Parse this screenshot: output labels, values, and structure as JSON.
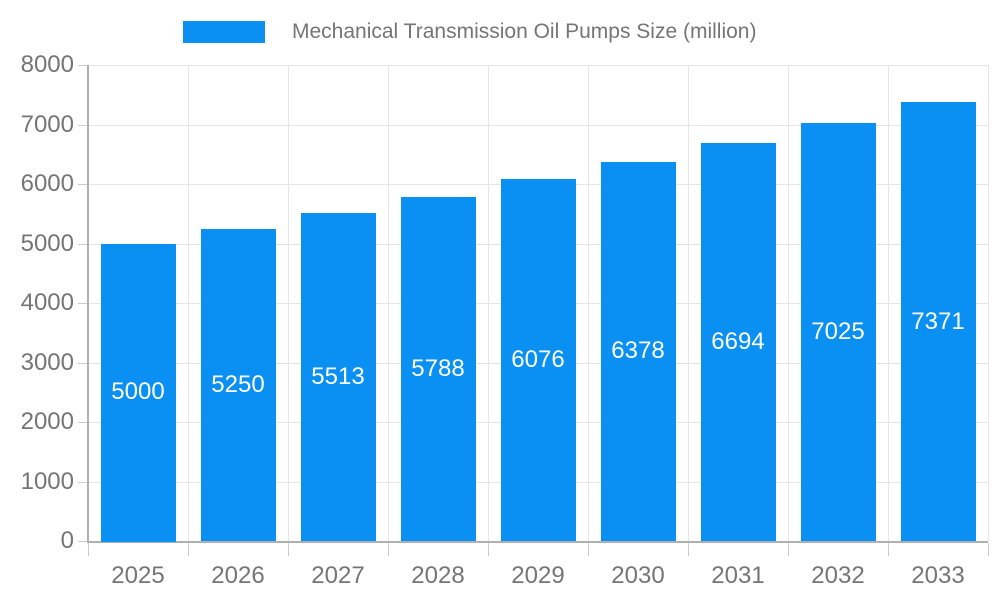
{
  "colors": {
    "bar": "#0990f2",
    "grid": "#e6e6e6",
    "axis": "#b0b0b0",
    "tick": "#cccccc",
    "axis_text": "#757575",
    "value_text": "#ffffff",
    "background": "#ffffff"
  },
  "legend": {
    "label": "Mechanical Transmission Oil Pumps Size (million)"
  },
  "chart_data": {
    "type": "bar",
    "title": "Mechanical Transmission Oil Pumps Size (million)",
    "categories": [
      "2025",
      "2026",
      "2027",
      "2028",
      "2029",
      "2030",
      "2031",
      "2032",
      "2033"
    ],
    "series": [
      {
        "name": "Mechanical Transmission Oil Pumps Size (million)",
        "values": [
          5000,
          5250,
          5513,
          5788,
          6076,
          6378,
          6694,
          7025,
          7371
        ]
      }
    ],
    "value_labels": "inside-middle",
    "xlabel": "",
    "ylabel": "",
    "ylim": [
      0,
      8000
    ],
    "y_ticks": [
      0,
      1000,
      2000,
      3000,
      4000,
      5000,
      6000,
      7000,
      8000
    ],
    "grid": "horizontal-and-vertical",
    "legend_position": "top"
  }
}
